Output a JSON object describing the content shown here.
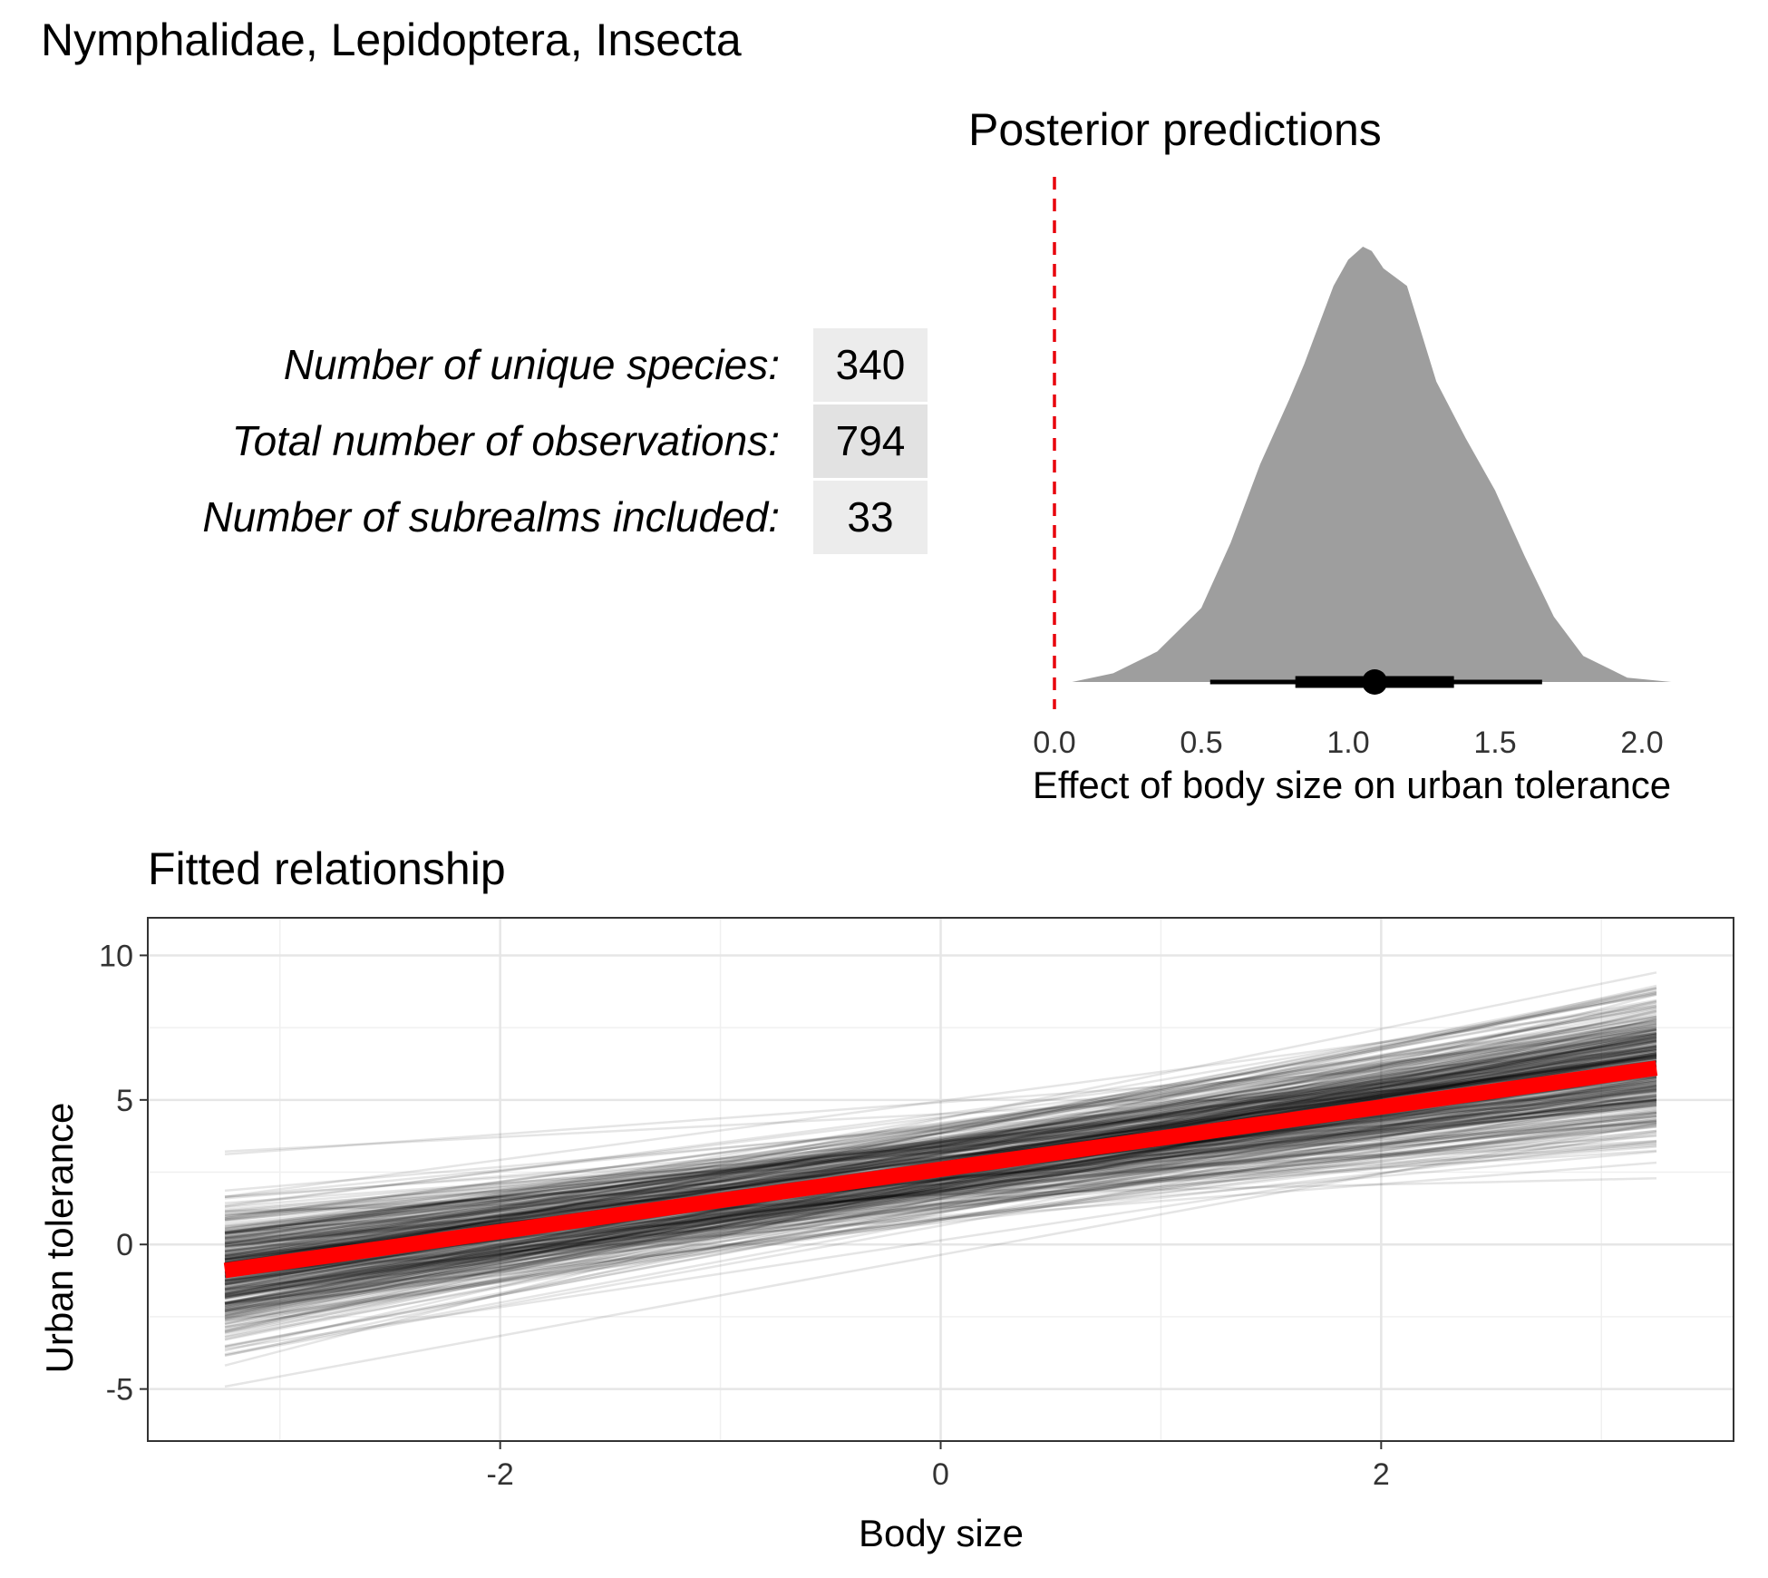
{
  "figure_title": "Nymphalidae, Lepidoptera, Insecta",
  "stats": [
    {
      "label": "Number of unique species:",
      "value": "340"
    },
    {
      "label": "Total number of observations:",
      "value": "794"
    },
    {
      "label": "Number of subrealms included:",
      "value": "33"
    }
  ],
  "colors": {
    "density_fill": "#9e9e9e",
    "reference_line": "#e8000b",
    "mean_line": "#ff0000",
    "draws": "#000000",
    "grid": "#e6e6e6",
    "table_cell": "#ececec"
  },
  "chart_data": [
    {
      "type": "area",
      "title": "Posterior predictions",
      "xlabel": "Effect of body size on urban tolerance",
      "ylabel": "",
      "xlim": [
        -0.05,
        2.2
      ],
      "x_ticks": [
        "0.0",
        "0.5",
        "1.0",
        "1.5",
        "2.0"
      ],
      "x_tick_values": [
        0.0,
        0.5,
        1.0,
        1.5,
        2.0
      ],
      "reference_line_x": 0.0,
      "density": {
        "x": [
          0.06,
          0.2,
          0.35,
          0.5,
          0.6,
          0.7,
          0.8,
          0.85,
          0.9,
          0.95,
          1.0,
          1.05,
          1.08,
          1.12,
          1.2,
          1.3,
          1.4,
          1.5,
          1.6,
          1.7,
          1.8,
          1.95,
          2.1,
          2.17
        ],
        "y": [
          0.0,
          0.02,
          0.07,
          0.17,
          0.32,
          0.5,
          0.65,
          0.73,
          0.82,
          0.91,
          0.97,
          1.0,
          0.99,
          0.95,
          0.91,
          0.69,
          0.56,
          0.44,
          0.29,
          0.15,
          0.06,
          0.01,
          0.0,
          0.0
        ]
      },
      "point_estimate": 1.09,
      "interval_66": [
        0.82,
        1.36
      ],
      "interval_95": [
        0.53,
        1.66
      ],
      "grid": false
    },
    {
      "type": "line",
      "title": "Fitted relationship",
      "xlabel": "Body size",
      "ylabel": "Urban tolerance",
      "xlim": [
        -3.6,
        3.6
      ],
      "ylim": [
        -6.8,
        11.3
      ],
      "x_ticks": [
        "-2",
        "0",
        "2"
      ],
      "x_tick_values": [
        -2,
        0,
        2
      ],
      "y_ticks": [
        "-5",
        "0",
        "5",
        "10"
      ],
      "y_tick_values": [
        -5,
        0,
        5,
        10
      ],
      "x_range": [
        -3.25,
        3.25
      ],
      "mean_fit": {
        "x": [
          -3.25,
          3.25
        ],
        "y": [
          -0.9,
          6.1
        ]
      },
      "posterior_draws": {
        "n": 400,
        "intercept_mean": 2.6,
        "intercept_sd": 0.85,
        "slope_mean": 1.09,
        "slope_sd": 0.27
      },
      "grid": true
    }
  ]
}
